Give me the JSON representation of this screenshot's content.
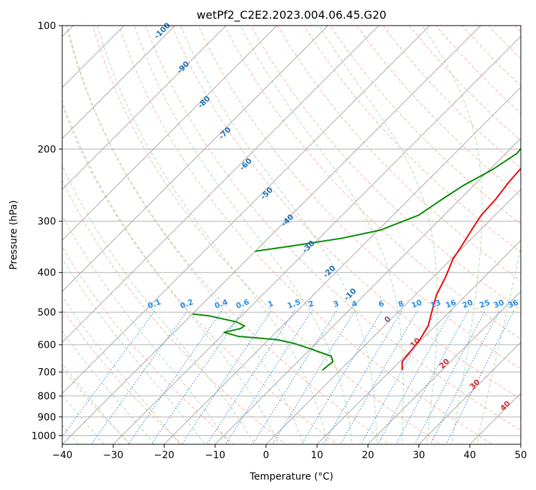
{
  "chart_data": {
    "type": "line",
    "title": "wetPf2_C2E2.2023.004.06.45.G20",
    "xlabel": "Temperature (°C)",
    "ylabel": "Pressure (hPa)",
    "xlim": [
      -40,
      50
    ],
    "ylim": [
      1050,
      100
    ],
    "x_ticks": [
      -40,
      -30,
      -20,
      -10,
      0,
      10,
      20,
      30,
      40,
      50
    ],
    "x_tick_labels": [
      "−40",
      "−30",
      "−20",
      "−10",
      "0",
      "10",
      "20",
      "30",
      "40",
      "50"
    ],
    "y_ticks": [
      1000,
      900,
      800,
      700,
      600,
      500,
      400,
      300,
      200,
      100
    ],
    "y_tick_labels": [
      "1000",
      "900",
      "800",
      "700",
      "600",
      "500",
      "400",
      "300",
      "200",
      "100"
    ],
    "grid": true,
    "series": [
      {
        "name": "temperature",
        "color": "#ee0000",
        "points": [
          [
            693,
            12.2
          ],
          [
            660,
            10.5
          ],
          [
            620,
            10.1
          ],
          [
            580,
            9.6
          ],
          [
            540,
            8.6
          ],
          [
            500,
            6.6
          ],
          [
            455,
            4.2
          ],
          [
            410,
            2.4
          ],
          [
            370,
            0.3
          ],
          [
            345,
            -0.5
          ],
          [
            315,
            -1.7
          ],
          [
            290,
            -2.7
          ],
          [
            265,
            -3.0
          ],
          [
            240,
            -3.8
          ],
          [
            210,
            -4.3
          ],
          [
            185,
            -3.9
          ],
          [
            165,
            -3.6
          ],
          [
            150,
            -4.3
          ],
          [
            135,
            -6.1
          ],
          [
            120,
            -8.4
          ],
          [
            112,
            -10.7
          ],
          [
            105,
            -13.8
          ],
          [
            100,
            -16.3
          ]
        ]
      },
      {
        "name": "dewpoint",
        "color": "#008800",
        "points": [
          [
            693,
            -3.5
          ],
          [
            675,
            -3.3
          ],
          [
            660,
            -3.1
          ],
          [
            640,
            -4.5
          ],
          [
            612,
            -10.5
          ],
          [
            595,
            -14.5
          ],
          [
            583,
            -18.5
          ],
          [
            573,
            -26.5
          ],
          [
            560,
            -30.2
          ],
          [
            548,
            -27.7
          ],
          [
            540,
            -27.5
          ],
          [
            528,
            -29.8
          ],
          [
            510,
            -36.5
          ],
          [
            505,
            -40.0
          ]
        ]
      },
      {
        "name": "dewpoint-upper",
        "color": "#008800",
        "points": [
          [
            355,
            -40.0
          ],
          [
            345,
            -34.0
          ],
          [
            330,
            -25.5
          ],
          [
            315,
            -19.5
          ],
          [
            290,
            -15.0
          ],
          [
            265,
            -13.5
          ],
          [
            245,
            -12.0
          ],
          [
            225,
            -9.5
          ],
          [
            205,
            -7.8
          ],
          [
            185,
            -8.6
          ],
          [
            165,
            -11.5
          ],
          [
            145,
            -15.5
          ],
          [
            128,
            -20.0
          ],
          [
            115,
            -24.0
          ],
          [
            100,
            -29.5
          ]
        ]
      }
    ],
    "dry_adiabat_labels": [
      "-100",
      "-90",
      "-80",
      "-70",
      "-60",
      "-50",
      "-40",
      "-30",
      "-20",
      "-10"
    ],
    "moist_adiabat_labels": [
      "0",
      "10",
      "20",
      "30",
      "40"
    ],
    "mixing_ratio_labels": [
      "0.1",
      "0.2",
      "0.4",
      "0.6",
      "1",
      "1.5",
      "2",
      "3",
      "4",
      "6",
      "8",
      "10",
      "13",
      "16",
      "20",
      "25",
      "30",
      "36"
    ]
  },
  "colors": {
    "dry_label": "#1f6fb4",
    "mixing_label": "#2a8ee8",
    "moist_label_warm": "#cc3333",
    "moist_label_zero": "#666666"
  }
}
